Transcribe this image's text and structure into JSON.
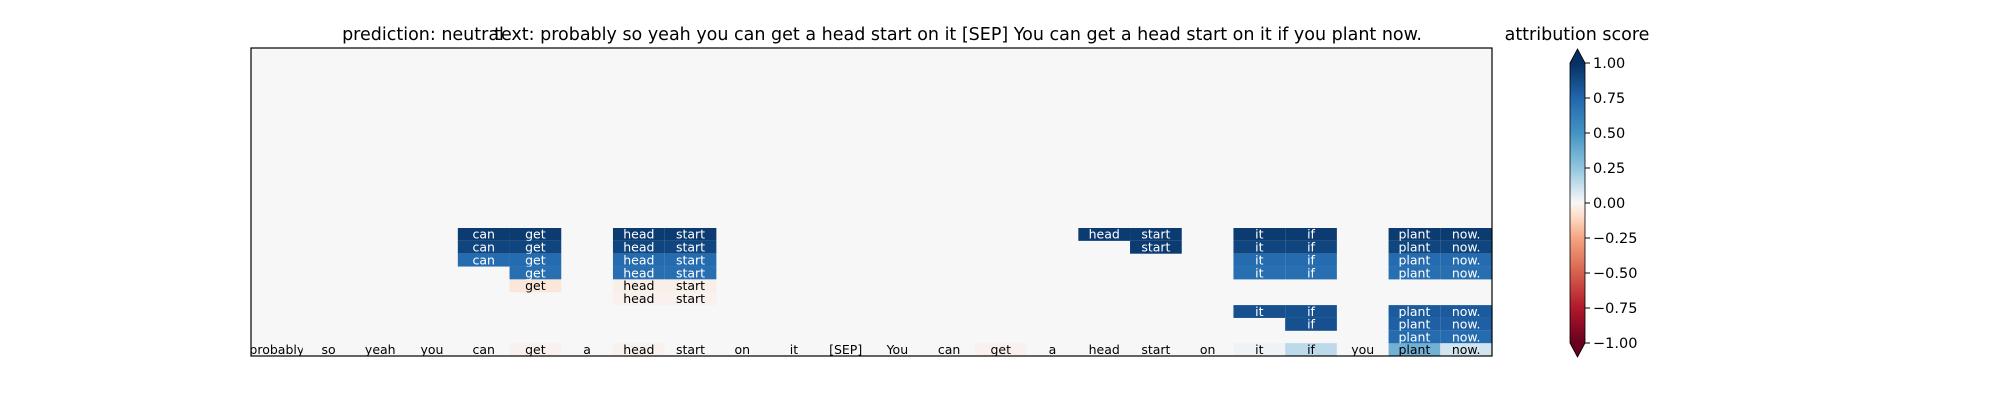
{
  "chart_data": {
    "type": "heatmap",
    "title_prediction": "prediction:  neutral",
    "title_text": "text:  probably so yeah you can get a head start on it [SEP] You can get a head start on it if you plant now.",
    "tokens": [
      "probably",
      "so",
      "yeah",
      "you",
      "can",
      "get",
      "a",
      "head",
      "start",
      "on",
      "it",
      "[SEP]",
      "You",
      "can",
      "get",
      "a",
      "head",
      "start",
      "on",
      "it",
      "if",
      "you",
      "plant",
      "now."
    ],
    "token_row_scores": [
      0,
      0,
      0,
      0,
      0,
      -0.02,
      0,
      -0.02,
      0,
      0,
      0,
      0,
      0,
      0,
      -0.02,
      0,
      0,
      0,
      0,
      0.02,
      0.15,
      0,
      0.35,
      0.1
    ],
    "rows": 24,
    "background_score": 0,
    "cells": [
      {
        "row": 0,
        "col": 4,
        "v": 0.95
      },
      {
        "row": 0,
        "col": 5,
        "v": 0.95
      },
      {
        "row": 0,
        "col": 7,
        "v": 0.95
      },
      {
        "row": 0,
        "col": 8,
        "v": 0.95
      },
      {
        "row": 0,
        "col": 16,
        "v": 0.95
      },
      {
        "row": 0,
        "col": 17,
        "v": 0.95
      },
      {
        "row": 0,
        "col": 19,
        "v": 0.95
      },
      {
        "row": 0,
        "col": 20,
        "v": 0.95
      },
      {
        "row": 0,
        "col": 22,
        "v": 0.95
      },
      {
        "row": 0,
        "col": 23,
        "v": 0.95
      },
      {
        "row": 1,
        "col": 4,
        "v": 0.9
      },
      {
        "row": 1,
        "col": 5,
        "v": 0.9
      },
      {
        "row": 1,
        "col": 7,
        "v": 0.9
      },
      {
        "row": 1,
        "col": 8,
        "v": 0.9
      },
      {
        "row": 1,
        "col": 17,
        "v": 0.95
      },
      {
        "row": 1,
        "col": 19,
        "v": 0.9
      },
      {
        "row": 1,
        "col": 20,
        "v": 0.9
      },
      {
        "row": 1,
        "col": 22,
        "v": 0.9
      },
      {
        "row": 1,
        "col": 23,
        "v": 0.9
      },
      {
        "row": 2,
        "col": 4,
        "v": 0.72
      },
      {
        "row": 2,
        "col": 5,
        "v": 0.72
      },
      {
        "row": 2,
        "col": 7,
        "v": 0.72
      },
      {
        "row": 2,
        "col": 8,
        "v": 0.72
      },
      {
        "row": 2,
        "col": 19,
        "v": 0.72
      },
      {
        "row": 2,
        "col": 20,
        "v": 0.72
      },
      {
        "row": 2,
        "col": 22,
        "v": 0.72
      },
      {
        "row": 2,
        "col": 23,
        "v": 0.72
      },
      {
        "row": 3,
        "col": 5,
        "v": 0.7
      },
      {
        "row": 3,
        "col": 7,
        "v": 0.7
      },
      {
        "row": 3,
        "col": 8,
        "v": 0.7
      },
      {
        "row": 3,
        "col": 19,
        "v": 0.7
      },
      {
        "row": 3,
        "col": 20,
        "v": 0.7
      },
      {
        "row": 3,
        "col": 22,
        "v": 0.7
      },
      {
        "row": 3,
        "col": 23,
        "v": 0.7
      },
      {
        "row": 4,
        "col": 5,
        "v": -0.06
      },
      {
        "row": 4,
        "col": 7,
        "v": -0.03
      },
      {
        "row": 4,
        "col": 8,
        "v": -0.03
      },
      {
        "row": 5,
        "col": 7,
        "v": -0.02
      },
      {
        "row": 5,
        "col": 8,
        "v": -0.02
      },
      {
        "row": 6,
        "col": 19,
        "v": 0.85
      },
      {
        "row": 6,
        "col": 20,
        "v": 0.85
      },
      {
        "row": 6,
        "col": 22,
        "v": 0.8
      },
      {
        "row": 6,
        "col": 23,
        "v": 0.8
      },
      {
        "row": 7,
        "col": 20,
        "v": 0.85
      },
      {
        "row": 7,
        "col": 22,
        "v": 0.78
      },
      {
        "row": 7,
        "col": 23,
        "v": 0.78
      },
      {
        "row": 8,
        "col": 22,
        "v": 0.72
      },
      {
        "row": 8,
        "col": 23,
        "v": 0.72
      }
    ],
    "colorbar": {
      "label": "attribution score",
      "range": [
        -1,
        1
      ],
      "ticks": [
        "1.00",
        "0.75",
        "0.50",
        "0.25",
        "0.00",
        "−0.25",
        "−0.50",
        "−0.75",
        "−1.00"
      ],
      "tick_values": [
        1,
        0.75,
        0.5,
        0.25,
        0,
        -0.25,
        -0.5,
        -0.75,
        -1
      ],
      "colormap": "RdBu",
      "extend": "both"
    }
  }
}
